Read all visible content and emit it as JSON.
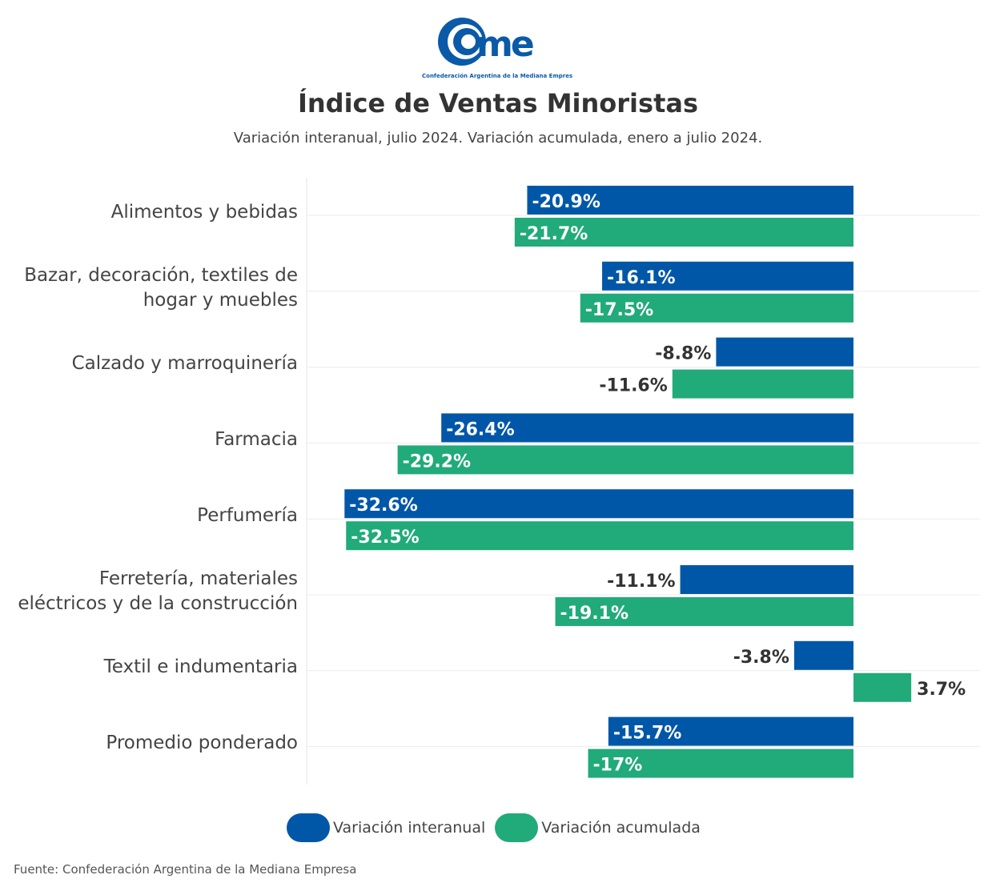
{
  "logo": {
    "text": "cme",
    "tagline": "Confederación Argentina de la Mediana Empresa"
  },
  "title": "Índice de Ventas Minoristas",
  "subtitle": "Variación interanual, julio 2024. Variación acumulada, enero a julio 2024.",
  "source": "Fuente: Confederación Argentina de la Mediana Empresa",
  "colors": {
    "interanual": "#0057a8",
    "acumulada": "#21aa7a"
  },
  "chart_data": {
    "type": "bar",
    "orientation": "horizontal",
    "categories": [
      "Alimentos y bebidas",
      "Bazar, decoración, textiles de hogar y muebles",
      "Calzado y marroquinería",
      "Farmacia",
      "Perfumería",
      "Ferretería, materiales eléctricos y de la construcción",
      "Textil e indumentaria",
      "Promedio ponderado"
    ],
    "category_lines": [
      [
        "Alimentos y bebidas"
      ],
      [
        "Bazar, decoración, textiles de",
        "hogar y muebles"
      ],
      [
        "Calzado y marroquinería"
      ],
      [
        "Farmacia"
      ],
      [
        "Perfumería"
      ],
      [
        "Ferretería, materiales",
        "eléctricos y de la construcción"
      ],
      [
        "Textil e indumentaria"
      ],
      [
        "Promedio ponderado"
      ]
    ],
    "series": [
      {
        "name": "Variación interanual",
        "values": [
          -20.9,
          -16.1,
          -8.8,
          -26.4,
          -32.6,
          -11.1,
          -3.8,
          -15.7
        ],
        "labels": [
          "-20.9%",
          "-16.1%",
          "-8.8%",
          "-26.4%",
          "-32.6%",
          "-11.1%",
          "-3.8%",
          "-15.7%"
        ]
      },
      {
        "name": "Variación acumulada",
        "values": [
          -21.7,
          -17.5,
          -11.6,
          -29.2,
          -32.5,
          -19.1,
          3.7,
          -17
        ],
        "labels": [
          "-21.7%",
          "-17.5%",
          "-11.6%",
          "-29.2%",
          "-32.5%",
          "-19.1%",
          "3.7%",
          "-17%"
        ]
      }
    ],
    "xlim": [
      -35,
      8
    ],
    "legend": "bottom",
    "grid": true
  }
}
